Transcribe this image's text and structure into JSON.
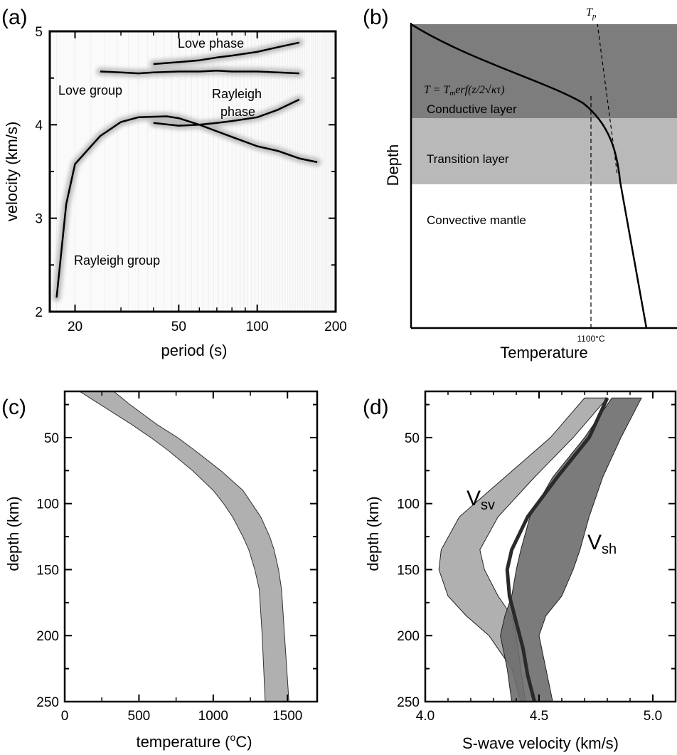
{
  "figure": {
    "panels": [
      {
        "id": "a",
        "label": "(a)"
      },
      {
        "id": "b",
        "label": "(b)"
      },
      {
        "id": "c",
        "label": "(c)"
      },
      {
        "id": "d",
        "label": "(d)"
      }
    ]
  },
  "chart_data": [
    {
      "panel": "(a)",
      "type": "line",
      "xlabel": "period (s)",
      "ylabel": "velocity (km/s)",
      "xscale": "log",
      "xlim": [
        16,
        200
      ],
      "ylim": [
        2,
        5
      ],
      "xticks": [
        20,
        50,
        100,
        200
      ],
      "yticks": [
        2,
        3,
        4,
        5
      ],
      "grid": false,
      "annotations": [
        "Love phase",
        "Love group",
        "Rayleigh phase",
        "Rayleigh group"
      ],
      "series": [
        {
          "name": "Love phase",
          "x": [
            40,
            50,
            60,
            70,
            80,
            100,
            120,
            145
          ],
          "y": [
            4.65,
            4.67,
            4.69,
            4.72,
            4.74,
            4.78,
            4.83,
            4.88
          ]
        },
        {
          "name": "Love group",
          "x": [
            25,
            30,
            35,
            40,
            50,
            60,
            70,
            80,
            100,
            120,
            145
          ],
          "y": [
            4.57,
            4.56,
            4.55,
            4.56,
            4.57,
            4.57,
            4.58,
            4.57,
            4.57,
            4.56,
            4.55
          ]
        },
        {
          "name": "Rayleigh phase",
          "x": [
            40,
            50,
            60,
            70,
            80,
            100,
            120,
            145
          ],
          "y": [
            4.02,
            3.99,
            4.0,
            4.02,
            4.04,
            4.08,
            4.16,
            4.27
          ]
        },
        {
          "name": "Rayleigh group",
          "x": [
            17,
            18.5,
            20,
            25,
            30,
            35,
            45,
            50,
            60,
            70,
            80,
            100,
            120,
            145,
            170
          ],
          "y": [
            2.15,
            3.15,
            3.58,
            3.88,
            4.03,
            4.08,
            4.09,
            4.07,
            4.0,
            3.93,
            3.87,
            3.77,
            3.72,
            3.64,
            3.6
          ]
        }
      ]
    },
    {
      "panel": "(b)",
      "type": "line",
      "xlabel": "Temperature",
      "ylabel": "Depth",
      "tick_label": "1100°C",
      "layers": [
        "Conductive layer",
        "Transition layer",
        "Convective mantle"
      ],
      "formula": "T = T_m erf(z/2√(κτ))",
      "annotation_Tp": "T_p",
      "colors": {
        "conductive": "#7d7d7d",
        "transition": "#b9b9b9",
        "convective": "#ffffff"
      }
    },
    {
      "panel": "(c)",
      "type": "area",
      "xlabel": "temperature (°C)",
      "ylabel": "depth (km)",
      "xlim": [
        0,
        1700
      ],
      "ylim": [
        250,
        15
      ],
      "xticks": [
        0,
        500,
        1000,
        1500
      ],
      "yticks": [
        50,
        100,
        150,
        200,
        250
      ],
      "band": {
        "depth": [
          15,
          25,
          40,
          50,
          60,
          75,
          90,
          100,
          110,
          125,
          135,
          150,
          165,
          200,
          250
        ],
        "temp_lower": [
          100,
          240,
          450,
          580,
          700,
          860,
          1000,
          1070,
          1130,
          1200,
          1240,
          1280,
          1310,
          1330,
          1350
        ],
        "temp_upper": [
          330,
          440,
          620,
          760,
          880,
          1050,
          1200,
          1260,
          1320,
          1380,
          1410,
          1440,
          1460,
          1480,
          1510
        ]
      },
      "color": "#b0b0b0"
    },
    {
      "panel": "(d)",
      "type": "area",
      "xlabel": "S-wave velocity (km/s)",
      "ylabel": "depth (km)",
      "xlim": [
        4.0,
        5.1
      ],
      "ylim": [
        250,
        15
      ],
      "xticks": [
        4.0,
        4.5,
        5.0
      ],
      "yticks": [
        50,
        100,
        150,
        200,
        250
      ],
      "series": [
        {
          "name": "Vsv",
          "depth": [
            20,
            50,
            80,
            110,
            135,
            150,
            170,
            185,
            200,
            225,
            250
          ],
          "lower": [
            4.7,
            4.55,
            4.35,
            4.15,
            4.07,
            4.06,
            4.1,
            4.18,
            4.28,
            4.38,
            4.42
          ],
          "upper": [
            4.8,
            4.65,
            4.48,
            4.32,
            4.24,
            4.26,
            4.32,
            4.38,
            4.4,
            4.42,
            4.44
          ],
          "color": "#b0b0b0"
        },
        {
          "name": "Vsh",
          "depth": [
            20,
            50,
            80,
            110,
            135,
            150,
            170,
            185,
            200,
            225,
            250
          ],
          "lower": [
            4.82,
            4.7,
            4.56,
            4.46,
            4.42,
            4.4,
            4.38,
            4.35,
            4.33,
            4.36,
            4.38
          ],
          "upper": [
            4.95,
            4.86,
            4.78,
            4.72,
            4.68,
            4.65,
            4.6,
            4.53,
            4.5,
            4.53,
            4.56
          ],
          "color": "#6d6d6d"
        },
        {
          "name": "Mean",
          "depth": [
            20,
            50,
            80,
            110,
            135,
            150,
            170,
            190,
            210,
            230,
            250
          ],
          "values": [
            4.8,
            4.72,
            4.58,
            4.45,
            4.38,
            4.36,
            4.37,
            4.4,
            4.43,
            4.45,
            4.48
          ],
          "color": "#2a2a2a"
        }
      ],
      "labels": {
        "vsv_main": "V",
        "vsv_sub": "sv",
        "vsh_main": "V",
        "vsh_sub": "sh"
      }
    }
  ]
}
